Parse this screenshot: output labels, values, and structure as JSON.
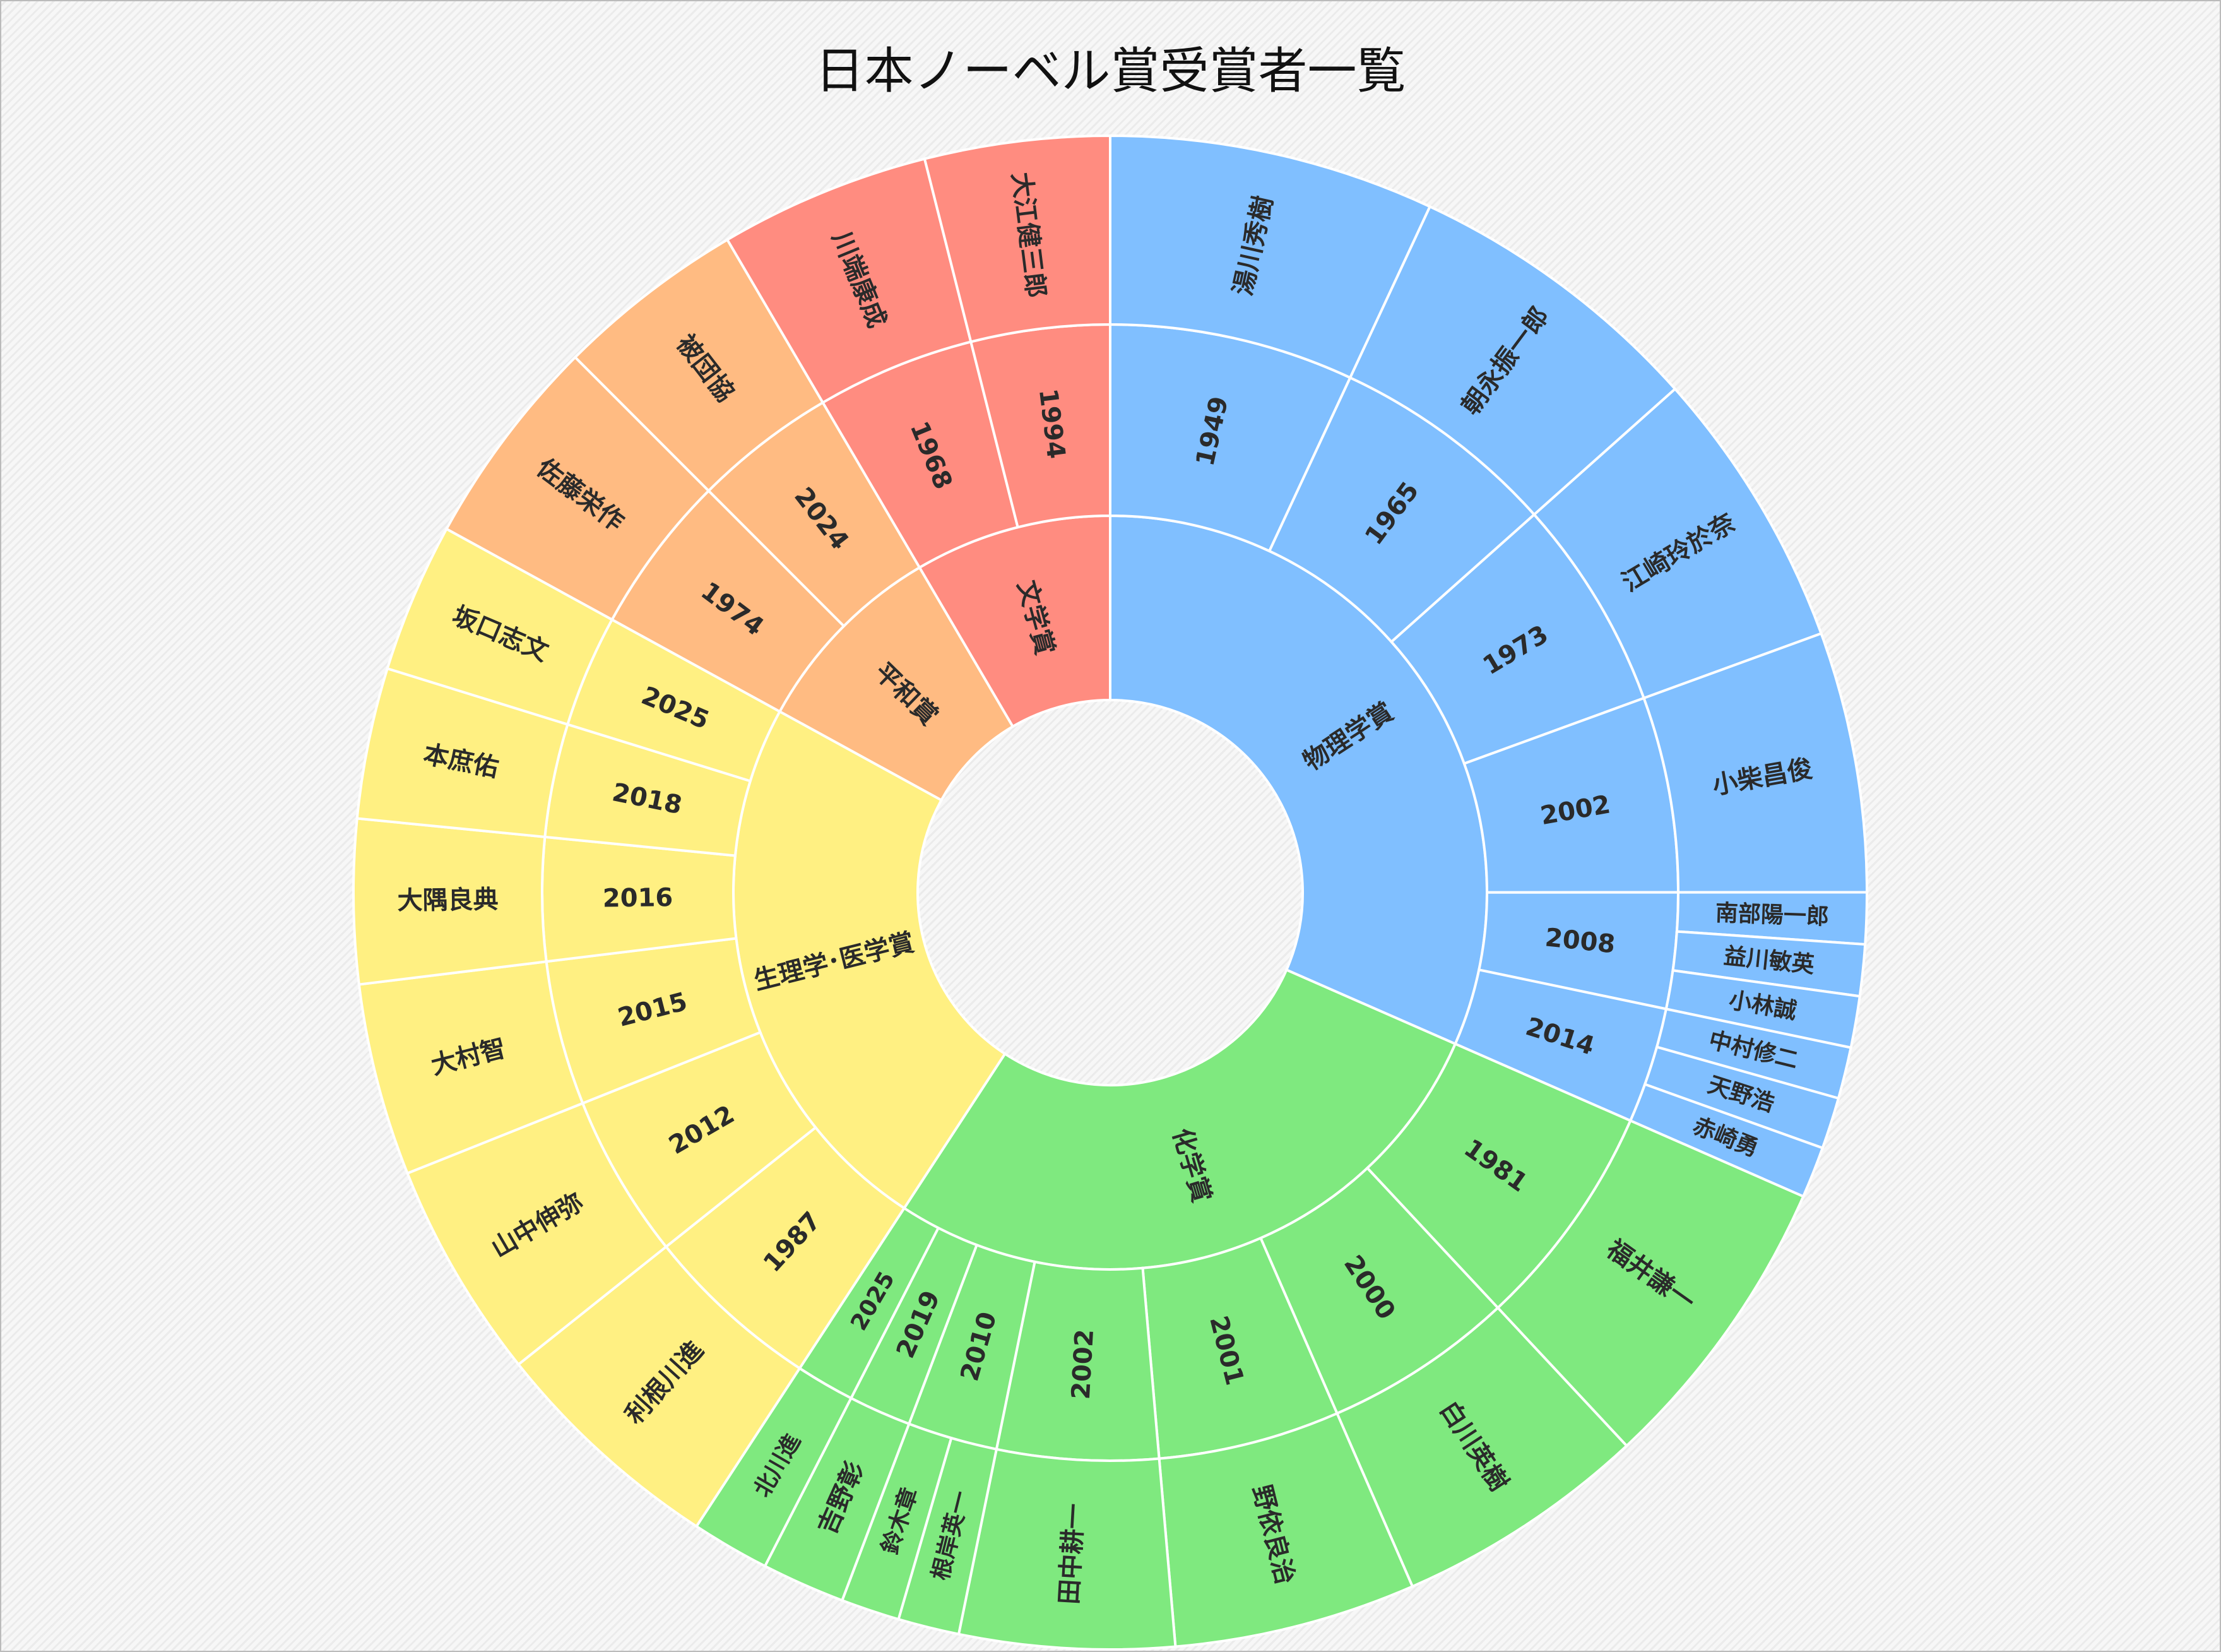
{
  "chart_data": {
    "type": "sunburst",
    "title": "日本ノーベル賞受賞者一覧",
    "label_color_light": "#ffffff",
    "label_color_dark": "#2a2a2a",
    "children": [
      {
        "name": "物理学賞",
        "color": "#80bfff",
        "children": [
          {
            "name": "1949",
            "children": [
              {
                "name": "湯川秀樹",
                "value": 25.0
              }
            ]
          },
          {
            "name": "1965",
            "children": [
              {
                "name": "朝永振一郎",
                "value": 23.3
              }
            ]
          },
          {
            "name": "1973",
            "children": [
              {
                "name": "江崎玲於奈",
                "value": 21.7
              }
            ]
          },
          {
            "name": "2002",
            "children": [
              {
                "name": "小柴昌俊",
                "value": 20.0
              }
            ]
          },
          {
            "name": "2008",
            "children": [
              {
                "name": "南部陽一郎",
                "value": 3.95
              },
              {
                "name": "益川敏英",
                "value": 3.95
              },
              {
                "name": "小林誠",
                "value": 3.95
              }
            ]
          },
          {
            "name": "2014",
            "children": [
              {
                "name": "中村修二",
                "value": 3.95
              },
              {
                "name": "天野浩",
                "value": 3.95
              },
              {
                "name": "赤崎勇",
                "value": 3.95
              }
            ]
          }
        ]
      },
      {
        "name": "化学賞",
        "color": "#7fe97f",
        "children": [
          {
            "name": "1981",
            "children": [
              {
                "name": "福井謙一",
                "value": 23.3
              }
            ]
          },
          {
            "name": "2000",
            "children": [
              {
                "name": "白川英樹",
                "value": 19.5
              }
            ]
          },
          {
            "name": "2001",
            "children": [
              {
                "name": "野依良治",
                "value": 18.6
              }
            ]
          },
          {
            "name": "2002",
            "children": [
              {
                "name": "田中耕一",
                "value": 16.5
              }
            ]
          },
          {
            "name": "2010",
            "children": [
              {
                "name": "根岸英一",
                "value": 4.7
              },
              {
                "name": "鈴木章",
                "value": 4.5
              }
            ]
          },
          {
            "name": "2019",
            "children": [
              {
                "name": "吉野彰",
                "value": 6.4
              }
            ]
          },
          {
            "name": "2025",
            "children": [
              {
                "name": "北川進",
                "value": 6.0
              }
            ]
          }
        ]
      },
      {
        "name": "生理学･医学賞",
        "color": "#fff082",
        "children": [
          {
            "name": "1987",
            "children": [
              {
                "name": "利根川進",
                "value": 18.3
              }
            ]
          },
          {
            "name": "2012",
            "children": [
              {
                "name": "山中伸弥",
                "value": 16.8
              }
            ]
          },
          {
            "name": "2015",
            "children": [
              {
                "name": "大村智",
                "value": 14.8
              }
            ]
          },
          {
            "name": "2016",
            "children": [
              {
                "name": "大隅良典",
                "value": 12.6
              }
            ]
          },
          {
            "name": "2018",
            "children": [
              {
                "name": "本庶佑",
                "value": 11.6
              }
            ]
          },
          {
            "name": "2025",
            "children": [
              {
                "name": "坂口志文",
                "value": 11.5
              }
            ]
          }
        ]
      },
      {
        "name": "平和賞",
        "color": "#ffbb82",
        "children": [
          {
            "name": "1974",
            "children": [
              {
                "name": "佐藤栄作",
                "value": 16.3
              }
            ]
          },
          {
            "name": "2024",
            "children": [
              {
                "name": "被団協",
                "value": 14.6
              }
            ]
          }
        ]
      },
      {
        "name": "文学賞",
        "color": "#ff8c80",
        "light_text": true,
        "children": [
          {
            "name": "1968",
            "children": [
              {
                "name": "川端康成",
                "value": 16.2
              }
            ]
          },
          {
            "name": "1994",
            "children": [
              {
                "name": "大江健三郎",
                "value": 14.2
              }
            ]
          }
        ]
      }
    ]
  }
}
